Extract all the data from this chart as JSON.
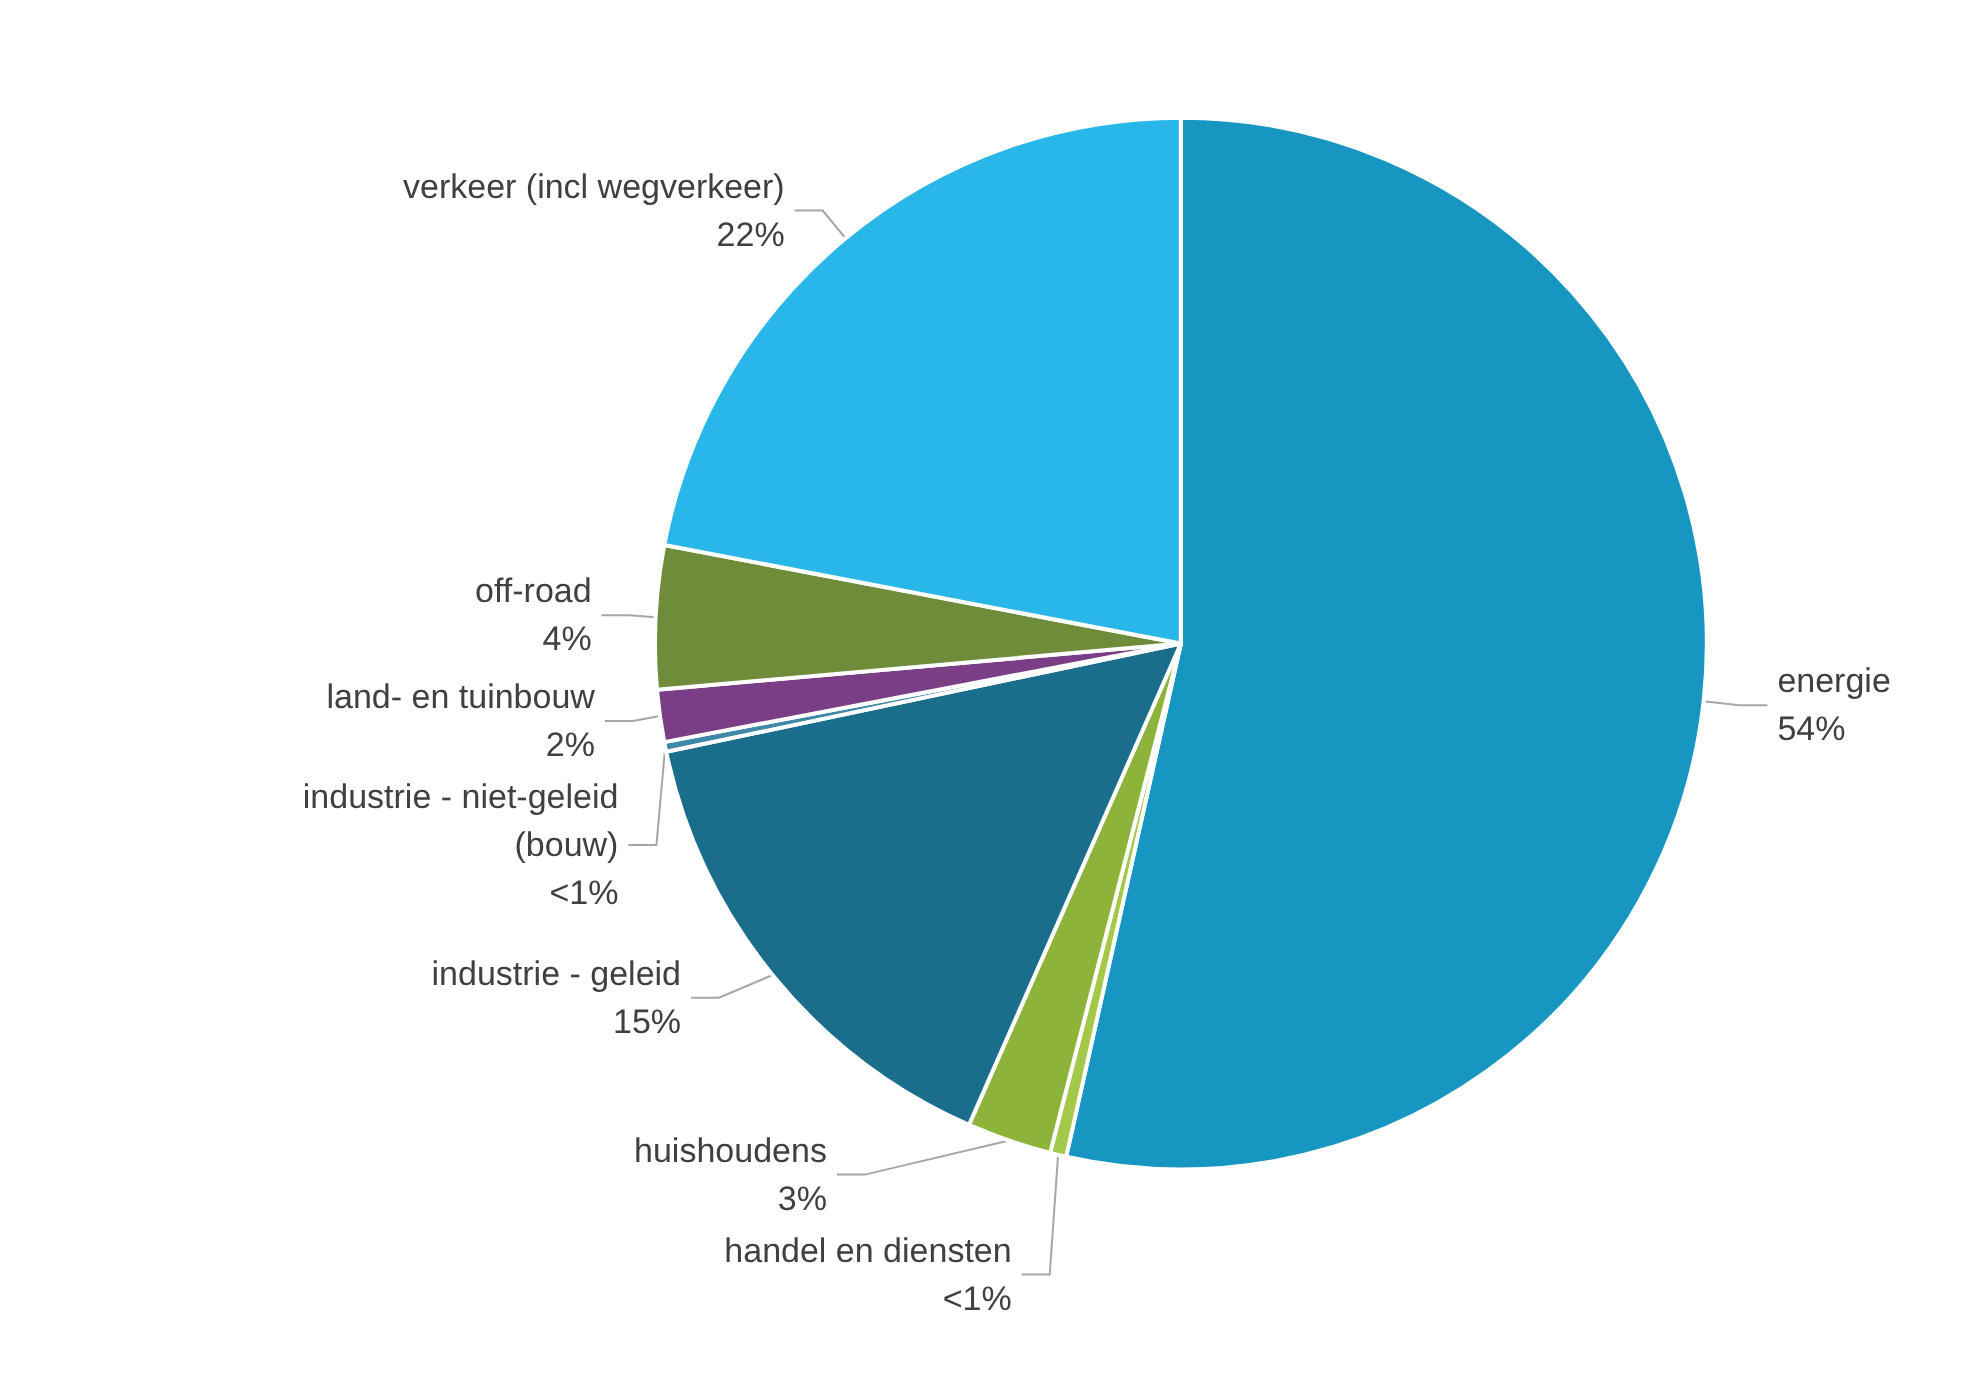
{
  "chart_data": {
    "type": "pie",
    "categories": [
      "energie",
      "handel en diensten",
      "huishoudens",
      "industrie - geleid",
      "industrie - niet-geleid\n(bouw)",
      "land- en tuinbouw",
      "off-road",
      "verkeer (incl wegverkeer)"
    ],
    "values": [
      53.5,
      0.5,
      2.6,
      15.1,
      0.3,
      1.6,
      4.4,
      22
    ],
    "value_labels": [
      "54%",
      "<1%",
      "3%",
      "15%",
      "<1%",
      "2%",
      "4%",
      "22%"
    ],
    "colors": [
      "#1696c0",
      "#a4c84a",
      "#8db33a",
      "#1a6e8c",
      "#3f88a8",
      "#7a3e86",
      "#6e8c3a",
      "#29b6e8"
    ],
    "legend": false
  }
}
